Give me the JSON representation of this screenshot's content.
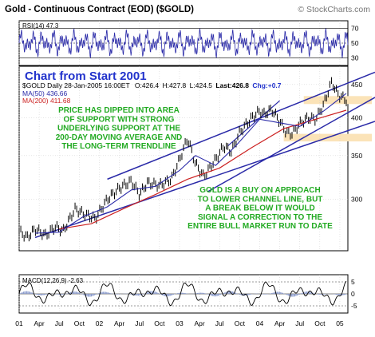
{
  "header": {
    "title": "Gold - Continuous Contract (EOD) ($GOLD)",
    "watermark": "© StockCharts.com"
  },
  "chart_data": [
    {
      "type": "line",
      "name": "rsi-panel",
      "indicator_label": "RSI(14) 47.3",
      "ylim": [
        20,
        80
      ],
      "y_ticks": [
        30,
        50,
        70
      ],
      "line_color": "#2a2aa8",
      "band_fill": "#ffffff"
    },
    {
      "type": "line",
      "name": "price-panel",
      "big_title": "Chart from Start 2001",
      "quote": {
        "symbol_line": "$GOLD Daily  28-Jan-2005 16:00ET",
        "o": "O:426.4",
        "h": "H:427.8",
        "l": "L:424.5",
        "last": "Last:426.8",
        "chg": "Chg:+0.7"
      },
      "legend": [
        {
          "label": "MA(50) 436.66",
          "color": "#2a2aa8"
        },
        {
          "label": "MA(200) 411.68",
          "color": "#cc2222"
        }
      ],
      "y_scale": "log",
      "ylim": [
        250,
        480
      ],
      "y_ticks": [
        300,
        350,
        400,
        450
      ],
      "x_ticks": [
        "01",
        "Apr",
        "Jul",
        "Oct",
        "02",
        "Apr",
        "Jul",
        "Oct",
        "03",
        "Apr",
        "Jul",
        "Oct",
        "04",
        "Apr",
        "Jul",
        "Oct",
        "05"
      ],
      "series": [
        {
          "name": "MA(50)",
          "color": "#2a2aa8"
        },
        {
          "name": "MA(200)",
          "color": "#cc2222"
        }
      ],
      "price_points": [
        {
          "t": 0,
          "v": 268
        },
        {
          "t": 0.1,
          "v": 262
        },
        {
          "t": 0.2,
          "v": 270
        },
        {
          "t": 0.33,
          "v": 264
        },
        {
          "t": 0.45,
          "v": 272
        },
        {
          "t": 0.55,
          "v": 268
        },
        {
          "t": 0.7,
          "v": 290
        },
        {
          "t": 0.8,
          "v": 285
        },
        {
          "t": 0.95,
          "v": 280
        },
        {
          "t": 1.1,
          "v": 300
        },
        {
          "t": 1.25,
          "v": 312
        },
        {
          "t": 1.4,
          "v": 320
        },
        {
          "t": 1.5,
          "v": 305
        },
        {
          "t": 1.6,
          "v": 318
        },
        {
          "t": 1.75,
          "v": 315
        },
        {
          "t": 1.9,
          "v": 322
        },
        {
          "t": 2.0,
          "v": 345
        },
        {
          "t": 2.1,
          "v": 372
        },
        {
          "t": 2.2,
          "v": 340
        },
        {
          "t": 2.3,
          "v": 325
        },
        {
          "t": 2.45,
          "v": 345
        },
        {
          "t": 2.55,
          "v": 362
        },
        {
          "t": 2.65,
          "v": 355
        },
        {
          "t": 2.75,
          "v": 380
        },
        {
          "t": 2.9,
          "v": 400
        },
        {
          "t": 3.0,
          "v": 410
        },
        {
          "t": 3.05,
          "v": 405
        },
        {
          "t": 3.15,
          "v": 412
        },
        {
          "t": 3.25,
          "v": 395
        },
        {
          "t": 3.33,
          "v": 380
        },
        {
          "t": 3.4,
          "v": 378
        },
        {
          "t": 3.5,
          "v": 392
        },
        {
          "t": 3.6,
          "v": 400
        },
        {
          "t": 3.7,
          "v": 398
        },
        {
          "t": 3.8,
          "v": 420
        },
        {
          "t": 3.9,
          "v": 455
        },
        {
          "t": 3.95,
          "v": 440
        },
        {
          "t": 4.0,
          "v": 432
        },
        {
          "t": 4.08,
          "v": 426
        }
      ],
      "ma50_points": [
        {
          "t": 0.2,
          "v": 266
        },
        {
          "t": 0.5,
          "v": 267
        },
        {
          "t": 0.8,
          "v": 282
        },
        {
          "t": 1.1,
          "v": 292
        },
        {
          "t": 1.4,
          "v": 310
        },
        {
          "t": 1.7,
          "v": 314
        },
        {
          "t": 2.0,
          "v": 332
        },
        {
          "t": 2.2,
          "v": 350
        },
        {
          "t": 2.45,
          "v": 338
        },
        {
          "t": 2.7,
          "v": 362
        },
        {
          "t": 3.0,
          "v": 398
        },
        {
          "t": 3.3,
          "v": 392
        },
        {
          "t": 3.5,
          "v": 388
        },
        {
          "t": 3.8,
          "v": 410
        },
        {
          "t": 4.08,
          "v": 436
        }
      ],
      "ma200_points": [
        {
          "t": 0.5,
          "v": 270
        },
        {
          "t": 0.9,
          "v": 275
        },
        {
          "t": 1.3,
          "v": 290
        },
        {
          "t": 1.7,
          "v": 305
        },
        {
          "t": 2.1,
          "v": 322
        },
        {
          "t": 2.5,
          "v": 335
        },
        {
          "t": 2.9,
          "v": 360
        },
        {
          "t": 3.3,
          "v": 385
        },
        {
          "t": 3.7,
          "v": 398
        },
        {
          "t": 4.08,
          "v": 411
        }
      ],
      "support_zones": [
        {
          "low": 420,
          "high": 432
        },
        {
          "low": 368,
          "high": 378
        }
      ],
      "annotations": [
        "PRICE HAS DIPPED INTO AREA\nOF SUPPORT WITH STRONG\nUNDERLYING SUPPORT AT THE\n200-DAY MOVING AVERAGE AND\nTHE LONG-TERM TRENDLINE",
        "GOLD IS A BUY ON APPROACH\nTO LOWER CHANNEL LINE, BUT\nA BREAK BELOW IT WOULD\nSIGNAL A CORRECTION TO THE\nENTIRE BULL MARKET RUN TO DATE"
      ],
      "annotation_color": "#22aa22",
      "title_color": "#2233cc",
      "channel_color": "#2a2aa8"
    },
    {
      "type": "line",
      "name": "macd-panel",
      "indicator_label": "MACD(12,26,9) -2.63",
      "ylim": [
        -8,
        8
      ],
      "y_ticks": [
        5,
        0,
        -5
      ],
      "line_color": "#000000",
      "hist_color": "#8899cc"
    }
  ],
  "colors": {
    "panel_border": "#000000",
    "grid": "#cccccc",
    "zone": "#fbe3b8"
  }
}
